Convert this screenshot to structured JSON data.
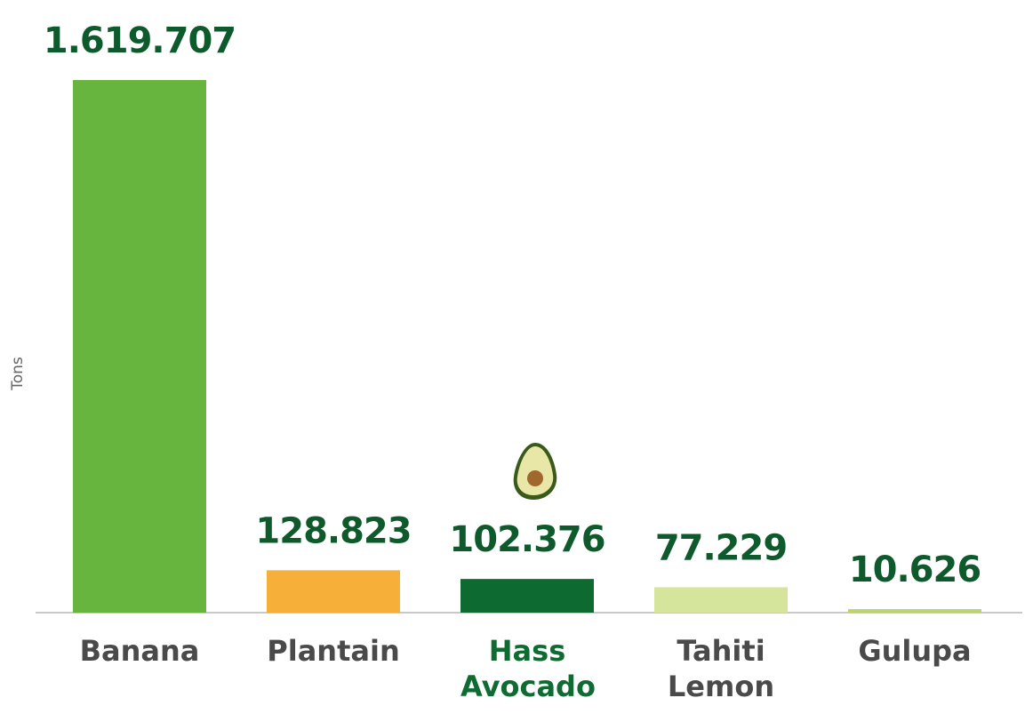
{
  "chart_data": {
    "type": "bar",
    "y_label": "Tons",
    "categories": [
      "Banana",
      "Plantain",
      "Hass Avocado",
      "Tahiti Lemon",
      "Gulupa"
    ],
    "values": [
      1619707,
      128823,
      102376,
      77229,
      10626
    ],
    "value_labels": [
      "1.619.707",
      "128.823",
      "102.376",
      "77.229",
      "10.626"
    ],
    "colors": [
      "#67b53f",
      "#f6b03a",
      "#0d6a30",
      "#d6e59c",
      "#bcd46e"
    ],
    "ylim": [
      0,
      1619707
    ]
  }
}
